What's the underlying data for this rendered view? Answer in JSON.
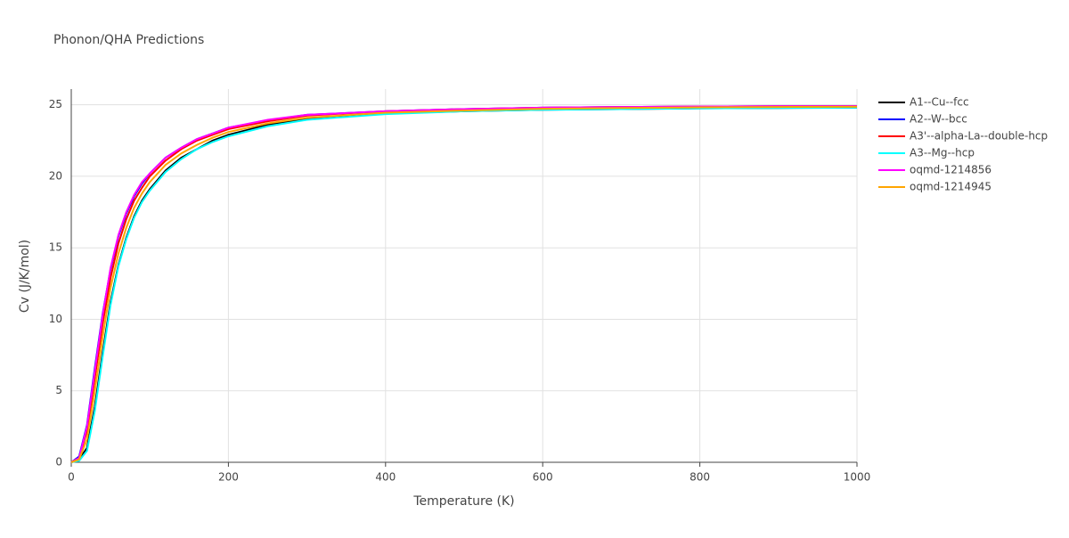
{
  "chart_data": {
    "type": "line",
    "title": "Phonon/QHA Predictions",
    "x_label": "Temperature (K)",
    "y_label": "Cv (J/K/mol)",
    "x": [
      0,
      10,
      20,
      30,
      40,
      50,
      60,
      70,
      80,
      90,
      100,
      120,
      140,
      160,
      180,
      200,
      250,
      300,
      400,
      500,
      600,
      700,
      800,
      900,
      1000
    ],
    "series": [
      {
        "name": "A1--Cu--fcc",
        "color": "#000000",
        "values": [
          0,
          0.2,
          1.0,
          3.9,
          7.7,
          11.2,
          13.8,
          15.7,
          17.2,
          18.3,
          19.1,
          20.4,
          21.3,
          21.9,
          22.5,
          22.9,
          23.6,
          24.0,
          24.4,
          24.55,
          24.65,
          24.7,
          24.75,
          24.78,
          24.8
        ]
      },
      {
        "name": "A2--W--bcc",
        "color": "#0000ff",
        "values": [
          0,
          0.4,
          2.6,
          6.6,
          10.4,
          13.5,
          15.8,
          17.4,
          18.6,
          19.5,
          20.2,
          21.3,
          22.0,
          22.6,
          23.0,
          23.4,
          23.9,
          24.3,
          24.55,
          24.7,
          24.8,
          24.85,
          24.88,
          24.9,
          24.9
        ]
      },
      {
        "name": "A3'--alpha-La--double-hcp",
        "color": "#ff0000",
        "values": [
          0,
          0.3,
          2.2,
          5.9,
          9.7,
          12.9,
          15.3,
          17.0,
          18.3,
          19.2,
          20.0,
          21.1,
          21.9,
          22.5,
          22.9,
          23.3,
          23.85,
          24.25,
          24.55,
          24.7,
          24.8,
          24.85,
          24.88,
          24.9,
          24.9
        ]
      },
      {
        "name": "A3--Mg--hcp",
        "color": "#00ffff",
        "values": [
          0,
          0.1,
          0.8,
          3.6,
          7.4,
          11.0,
          13.7,
          15.6,
          17.1,
          18.2,
          19.0,
          20.3,
          21.2,
          21.9,
          22.4,
          22.8,
          23.5,
          23.95,
          24.35,
          24.55,
          24.65,
          24.7,
          24.75,
          24.78,
          24.8
        ]
      },
      {
        "name": "oqmd-1214856",
        "color": "#ff00ff",
        "values": [
          0,
          0.3,
          2.5,
          6.4,
          10.3,
          13.6,
          15.9,
          17.5,
          18.7,
          19.6,
          20.2,
          21.3,
          22.0,
          22.6,
          23.0,
          23.4,
          23.95,
          24.3,
          24.55,
          24.7,
          24.8,
          24.85,
          24.88,
          24.9,
          24.9
        ]
      },
      {
        "name": "oqmd-1214945",
        "color": "#ffa500",
        "values": [
          0,
          0.2,
          1.6,
          5.0,
          8.8,
          12.2,
          14.6,
          16.4,
          17.8,
          18.8,
          19.6,
          20.8,
          21.6,
          22.2,
          22.7,
          23.1,
          23.7,
          24.1,
          24.45,
          24.6,
          24.72,
          24.78,
          24.82,
          24.85,
          24.86
        ]
      }
    ],
    "xlim": [
      0,
      1000
    ],
    "xticks": [
      0,
      200,
      400,
      600,
      800,
      1000
    ],
    "ylim": [
      0,
      26.1
    ],
    "yticks": [
      0,
      5,
      10,
      15,
      20,
      25
    ],
    "grid": true
  }
}
